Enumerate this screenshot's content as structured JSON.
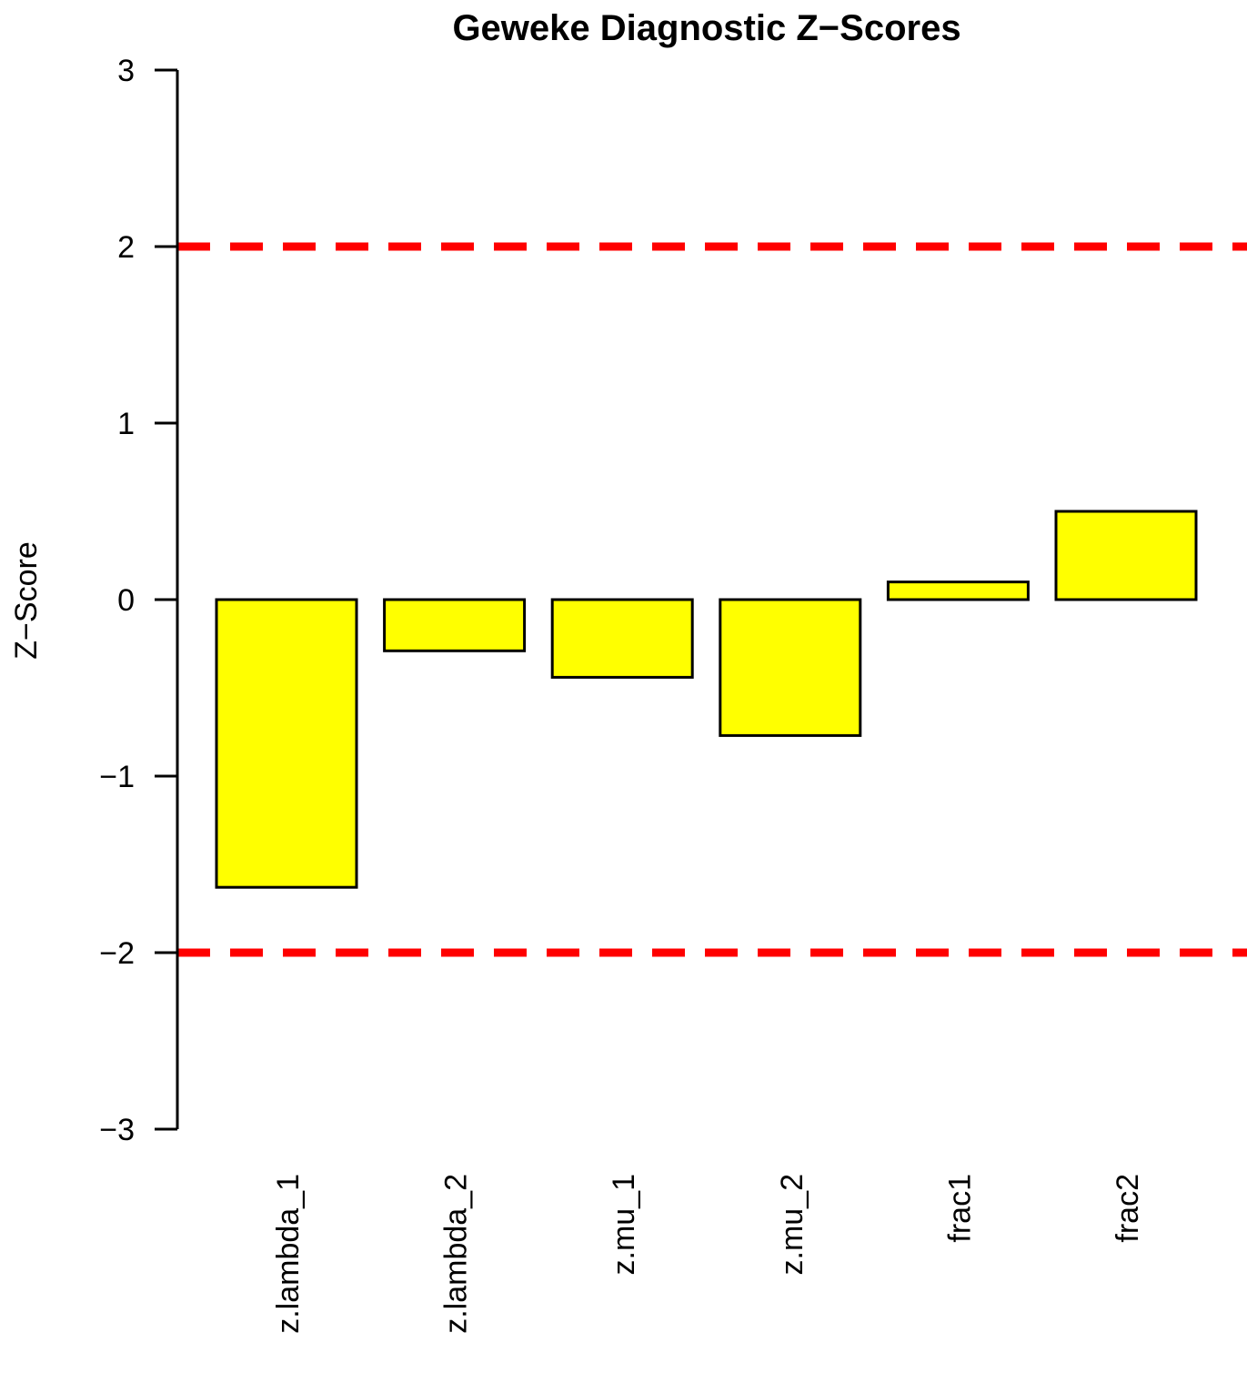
{
  "chart_data": {
    "type": "bar",
    "title": "Geweke Diagnostic Z−Scores",
    "ylabel": "Z−Score",
    "xlabel": "",
    "categories": [
      "z.lambda_1",
      "z.lambda_2",
      "z.mu_1",
      "z.mu_2",
      "frac1",
      "frac2"
    ],
    "values": [
      -1.63,
      -0.29,
      -0.44,
      -0.77,
      0.1,
      0.5
    ],
    "ylim": [
      -3,
      3
    ],
    "yticks": [
      -3,
      -2,
      -1,
      0,
      1,
      2,
      3
    ],
    "ytick_labels": [
      "−3",
      "−2",
      "−1",
      "0",
      "1",
      "2",
      "3"
    ],
    "reference_lines": [
      2,
      -2
    ],
    "grid": false,
    "legend": "none",
    "colors": {
      "bar_fill": "#ffff00",
      "bar_stroke": "#000000",
      "reference_line": "#ff0000"
    }
  }
}
